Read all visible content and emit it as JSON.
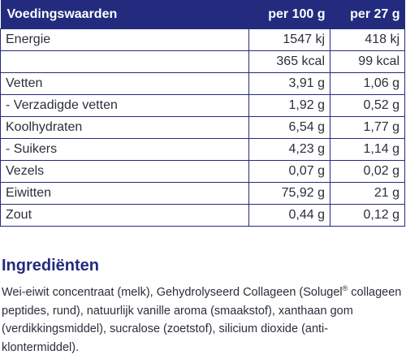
{
  "table": {
    "headers": [
      "Voedingswaarden",
      "per 100 g",
      "per 27 g"
    ],
    "rows": [
      {
        "label": "Energie",
        "per100": "1547 kj",
        "per27": "418 kj"
      },
      {
        "label": "",
        "per100": "365 kcal",
        "per27": "99 kcal"
      },
      {
        "label": "Vetten",
        "per100": "3,91 g",
        "per27": "1,06 g"
      },
      {
        "label": "- Verzadigde vetten",
        "per100": "1,92 g",
        "per27": "0,52 g"
      },
      {
        "label": "Koolhydraten",
        "per100": "6,54 g",
        "per27": "1,77 g"
      },
      {
        "label": "- Suikers",
        "per100": "4,23 g",
        "per27": "1,14 g"
      },
      {
        "label": "Vezels",
        "per100": "0,07 g",
        "per27": "0,02 g"
      },
      {
        "label": "Eiwitten",
        "per100": "75,92 g",
        "per27": "21 g"
      },
      {
        "label": "Zout",
        "per100": "0,44 g",
        "per27": "0,12 g"
      }
    ]
  },
  "ingredients": {
    "heading": "Ingrediënten",
    "text_before": "Wei-eiwit concentraat (melk), Gehydrolyseerd Collageen (Solugel",
    "registered_mark": "®",
    "text_after": " collageen peptides, rund), natuurlijk vanille aroma (smaakstof), xanthaan gom (verdikkingsmiddel), sucralose (zoetstof), silicium dioxide (anti-klontermiddel)."
  },
  "colors": {
    "header_bg": "#232b7e",
    "header_text": "#ffffff",
    "border": "#232b7e",
    "heading": "#232b7e",
    "body_text": "#2a2f3a"
  }
}
